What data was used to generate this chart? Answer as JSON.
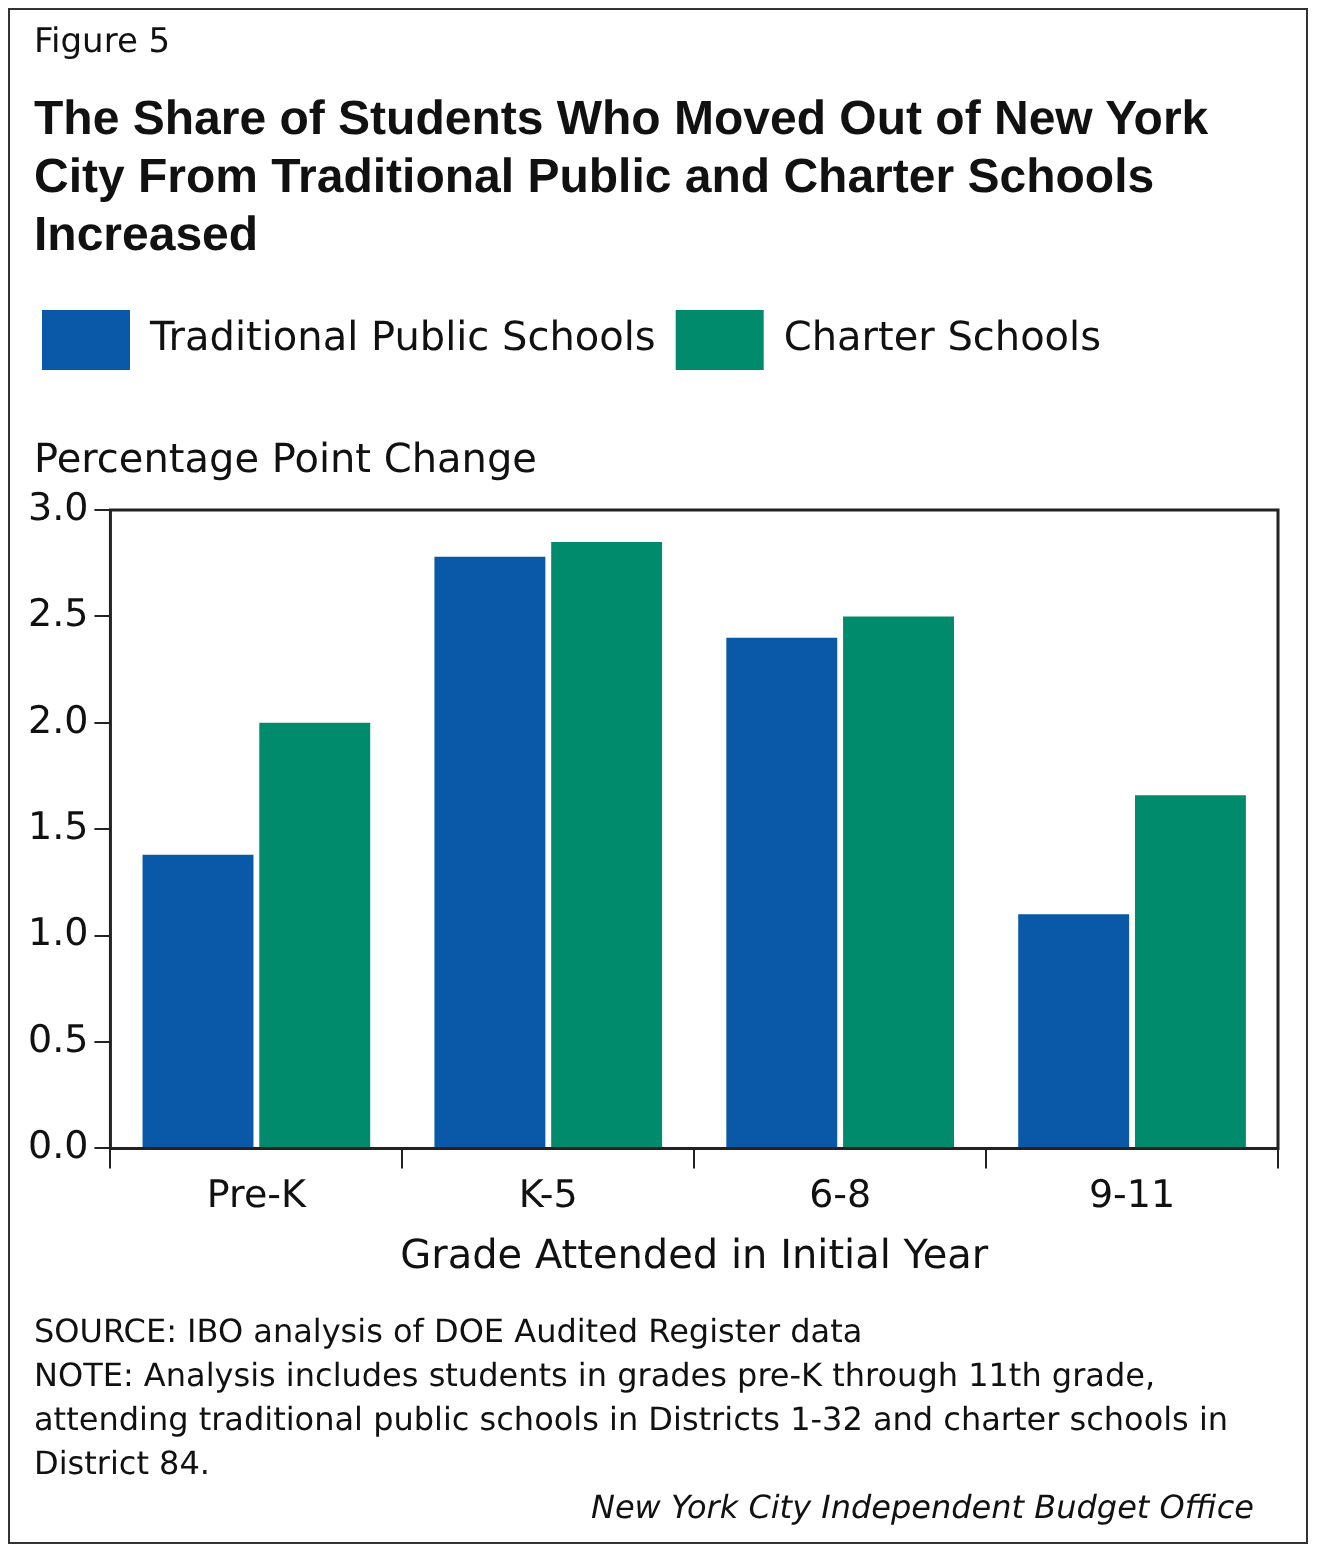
{
  "chart_data": {
    "type": "bar",
    "title": "The Share of Students Who Moved Out of New York City From Traditional Public and Charter Schools Increased",
    "ylabel": "Percentage Point Change",
    "xlabel": "Grade Attended in Initial Year",
    "categories": [
      "Pre-K",
      "K-5",
      "6-8",
      "9-11"
    ],
    "series": [
      {
        "name": "Traditional Public Schools",
        "color": "#0a58a8",
        "values": [
          1.38,
          2.78,
          2.4,
          1.1
        ]
      },
      {
        "name": "Charter Schools",
        "color": "#008b6c",
        "values": [
          2.0,
          2.85,
          2.5,
          1.66
        ]
      }
    ],
    "ylim": [
      0,
      3
    ],
    "yticks": [
      {
        "value": 0,
        "label": "0.0"
      },
      {
        "value": 0.5,
        "label": "0.5"
      },
      {
        "value": 1,
        "label": "1.0"
      },
      {
        "value": 1.5,
        "label": "1.5"
      },
      {
        "value": 2,
        "label": "2.0"
      },
      {
        "value": 2.5,
        "label": "2.5"
      },
      {
        "value": 3,
        "label": "3.0"
      }
    ],
    "grid": false,
    "legend": "top left",
    "annotations": [
      "Figure 5",
      "SOURCE: IBO analysis of DOE Audited Register data",
      "NOTE: Analysis includes students in grades pre-K through 11th grade, attending traditional public schools in Districts 1-32 and charter schools in District 84.",
      "New York City Independent Budget Office"
    ]
  }
}
